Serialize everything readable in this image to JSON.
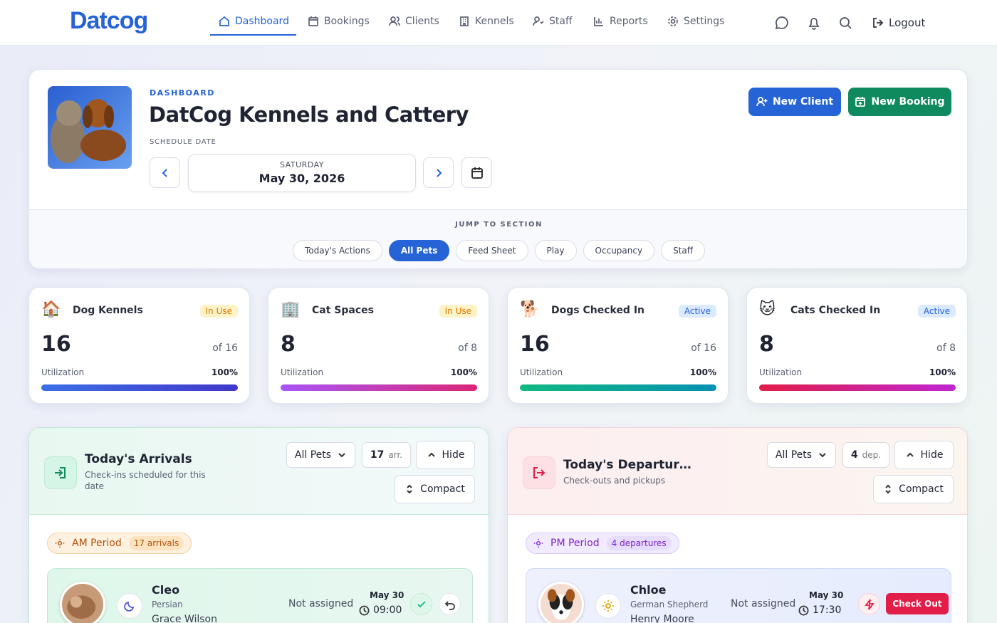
{
  "nav": {
    "logo": "Datcog",
    "items": [
      "Dashboard",
      "Bookings",
      "Clients",
      "Kennels",
      "Staff",
      "Reports",
      "Settings"
    ],
    "logout": "Logout"
  },
  "header": {
    "eyebrow": "DASHBOARD",
    "title": "DatCog Kennels and Cattery",
    "schedule_label": "SCHEDULE DATE",
    "day": "SATURDAY",
    "date": "May 30, 2026",
    "new_client": "New Client",
    "new_booking": "New Booking"
  },
  "jump": {
    "label": "JUMP TO SECTION",
    "items": [
      "Today's Actions",
      "All Pets",
      "Feed Sheet",
      "Play",
      "Occupancy",
      "Staff"
    ]
  },
  "stats": [
    {
      "label": "Dog Kennels",
      "badge": "In Use",
      "value": "16",
      "of": "of 16",
      "util_label": "Utilization",
      "util": "100%"
    },
    {
      "label": "Cat Spaces",
      "badge": "In Use",
      "value": "8",
      "of": "of 8",
      "util_label": "Utilization",
      "util": "100%"
    },
    {
      "label": "Dogs Checked In",
      "badge": "Active",
      "value": "16",
      "of": "of 16",
      "util_label": "Utilization",
      "util": "100%"
    },
    {
      "label": "Cats Checked In",
      "badge": "Active",
      "value": "8",
      "of": "of 8",
      "util_label": "Utilization",
      "util": "100%"
    }
  ],
  "panels": [
    {
      "title": "Today's Arrivals",
      "subtitle": "Check-ins scheduled for this date",
      "filter": "All Pets",
      "count": "17",
      "count_unit": "arr.",
      "hide": "Hide",
      "compact": "Compact",
      "period": "AM Period",
      "period_count": "17 arrivals",
      "card": {
        "name": "Cleo",
        "breed": "Persian",
        "owner": "Grace Wilson",
        "assigned": "Not assigned",
        "date": "May 30",
        "time": "09:00"
      }
    },
    {
      "title": "Today's Departur…",
      "subtitle": "Check-outs and pickups",
      "filter": "All Pets",
      "count": "4",
      "count_unit": "dep.",
      "hide": "Hide",
      "compact": "Compact",
      "period": "PM Period",
      "period_count": "4 departures",
      "card": {
        "name": "Chloe",
        "breed": "German Shepherd",
        "owner": "Henry Moore",
        "assigned": "Not assigned",
        "date": "May 30",
        "time": "17:30",
        "action": "Check Out"
      }
    }
  ]
}
